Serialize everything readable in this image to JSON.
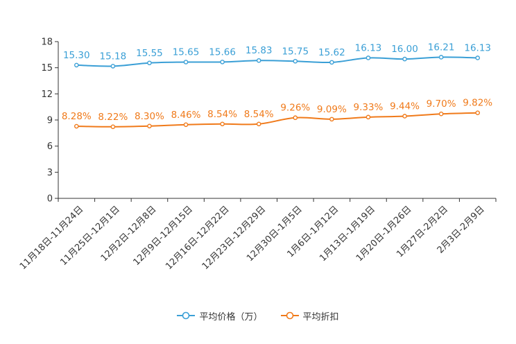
{
  "chart_data": {
    "type": "line",
    "title": "",
    "xlabel": "",
    "ylabel": "",
    "ylim": [
      0,
      18
    ],
    "yticks": [
      "0",
      "3",
      "6",
      "9",
      "12",
      "15",
      "18"
    ],
    "grid": false,
    "legend_position": "bottom",
    "categories": [
      "11月18日-11月24日",
      "11月25日-12月1日",
      "12月2日-12月8日",
      "12月9日-12月15日",
      "12月16日-12月22日",
      "12月23日-12月29日",
      "12月30日-1月5日",
      "1月6日-1月12日",
      "1月13日-1月19日",
      "1月20日-1月26日",
      "1月27日-2月2日",
      "2月3日-2月9日"
    ],
    "series": [
      {
        "name": "平均价格（万）",
        "color": "#3a9fd6",
        "values": [
          15.3,
          15.18,
          15.55,
          15.65,
          15.66,
          15.83,
          15.75,
          15.62,
          16.13,
          16.0,
          16.21,
          16.13
        ],
        "labels": [
          "15.30",
          "15.18",
          "15.55",
          "15.65",
          "15.66",
          "15.83",
          "15.75",
          "15.62",
          "16.13",
          "16.00",
          "16.21",
          "16.13"
        ]
      },
      {
        "name": "平均折扣",
        "color": "#f07a1a",
        "values": [
          8.28,
          8.22,
          8.3,
          8.46,
          8.54,
          8.54,
          9.26,
          9.09,
          9.33,
          9.44,
          9.7,
          9.82
        ],
        "labels": [
          "8.28%",
          "8.22%",
          "8.30%",
          "8.46%",
          "8.54%",
          "8.54%",
          "9.26%",
          "9.09%",
          "9.33%",
          "9.44%",
          "9.70%",
          "9.82%"
        ]
      }
    ]
  }
}
